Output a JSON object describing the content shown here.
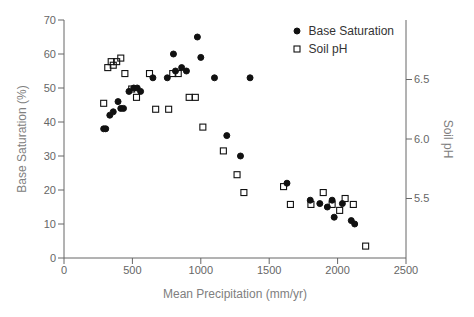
{
  "chart_data": {
    "type": "scatter",
    "xlabel": "Mean Precipitation (mm/yr)",
    "ylabel": "Base Saturation (%)",
    "y2label": "Soil pH",
    "xlim": [
      0,
      2500
    ],
    "xticks": [
      0,
      500,
      1000,
      1500,
      2000,
      2500
    ],
    "ylim": [
      0,
      70
    ],
    "yticks": [
      0,
      10,
      20,
      30,
      40,
      50,
      60,
      70
    ],
    "y2lim": [
      5.0,
      7.0
    ],
    "y2ticks": [
      5.5,
      {
        "value": 6.0,
        "label": "6.0"
      },
      6.5
    ],
    "grid": false,
    "legend": "upper right",
    "series": [
      {
        "name": "Base Saturation",
        "color": "#111111",
        "marker": "circle",
        "x": [
          290,
          305,
          335,
          360,
          395,
          415,
          435,
          475,
          510,
          535,
          560,
          650,
          755,
          800,
          815,
          860,
          895,
          975,
          1000,
          1100,
          1190,
          1290,
          1360,
          1630,
          1800,
          1870,
          1925,
          1960,
          1975,
          2035,
          2100,
          2125
        ],
        "values": [
          38,
          38,
          42,
          43,
          46,
          44,
          44,
          49,
          50,
          50,
          49,
          53,
          53,
          60,
          55,
          56,
          55,
          65,
          59,
          53,
          36,
          30,
          53,
          22,
          17,
          16,
          15,
          17,
          12,
          16,
          11,
          10
        ]
      },
      {
        "name": "Soil pH",
        "color": "#111111",
        "marker": "square",
        "axis": "y2",
        "x": [
          290,
          320,
          345,
          360,
          385,
          415,
          445,
          495,
          530,
          625,
          670,
          765,
          795,
          835,
          915,
          960,
          1015,
          1165,
          1265,
          1315,
          1605,
          1655,
          1805,
          1895,
          1960,
          2015,
          2055,
          2115,
          2205
        ],
        "values": [
          6.3,
          6.6,
          6.65,
          6.62,
          6.65,
          6.68,
          6.55,
          6.42,
          6.35,
          6.55,
          6.25,
          6.25,
          6.55,
          6.55,
          6.35,
          6.35,
          6.1,
          5.9,
          5.7,
          5.55,
          5.6,
          5.45,
          5.45,
          5.55,
          5.45,
          5.4,
          5.5,
          5.45,
          5.1
        ]
      }
    ]
  }
}
